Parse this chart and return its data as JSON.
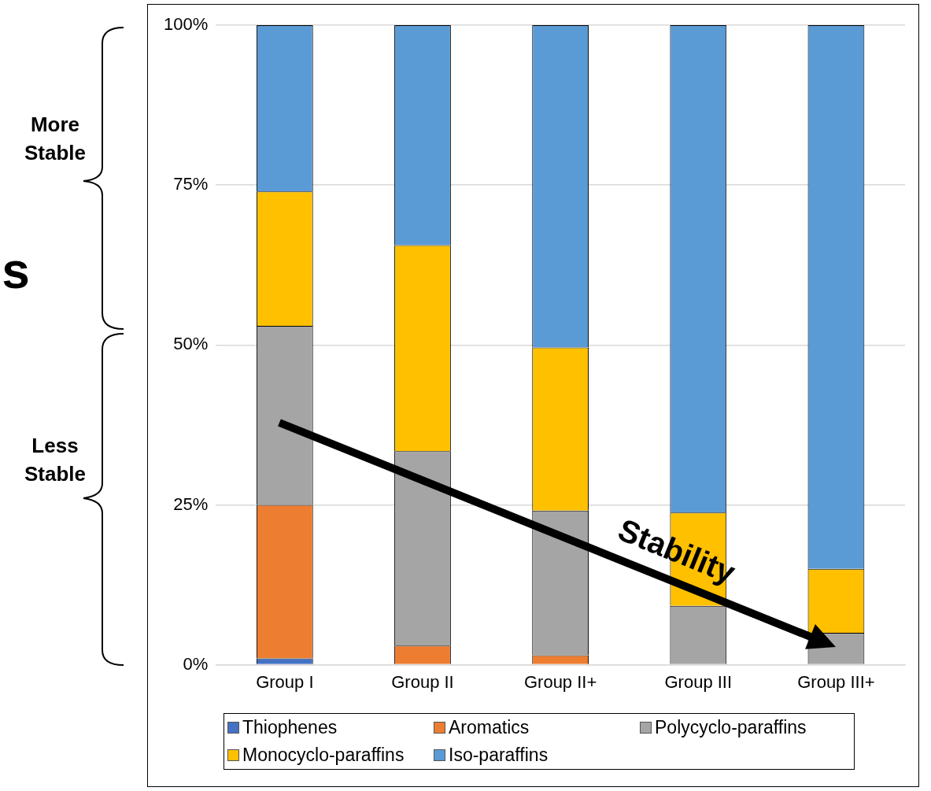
{
  "chart_data": {
    "type": "bar",
    "stacked": true,
    "categories": [
      "Group I",
      "Group II",
      "Group II+",
      "Group III",
      "Group III+"
    ],
    "series": [
      {
        "name": "Thiophenes",
        "color": "#4472c4",
        "values": [
          1.0,
          0,
          0,
          0,
          0
        ]
      },
      {
        "name": "Aromatics",
        "color": "#ed7d31",
        "values": [
          24.0,
          3.0,
          1.5,
          0,
          0
        ]
      },
      {
        "name": "Polycyclo-paraffins",
        "color": "#a5a5a5",
        "values": [
          28.0,
          30.4,
          22.6,
          9.2,
          5.0
        ]
      },
      {
        "name": "Monocyclo-paraffins",
        "color": "#ffc000",
        "values": [
          21.0,
          32.2,
          25.5,
          14.6,
          10.0
        ]
      },
      {
        "name": "Iso-paraffins",
        "color": "#5b9bd5",
        "values": [
          26.0,
          34.4,
          50.4,
          76.2,
          85.0
        ]
      }
    ],
    "ylim": [
      0,
      100
    ],
    "yticks": [
      {
        "value": 0,
        "label": "0%"
      },
      {
        "value": 25,
        "label": "25%"
      },
      {
        "value": 50,
        "label": "50%"
      },
      {
        "value": 75,
        "label": "75%"
      },
      {
        "value": 100,
        "label": "100%"
      }
    ],
    "grid": "y",
    "legend": "bottom",
    "annotations": [
      "More Stable",
      "Less Stable",
      "Stability",
      "s"
    ]
  }
}
